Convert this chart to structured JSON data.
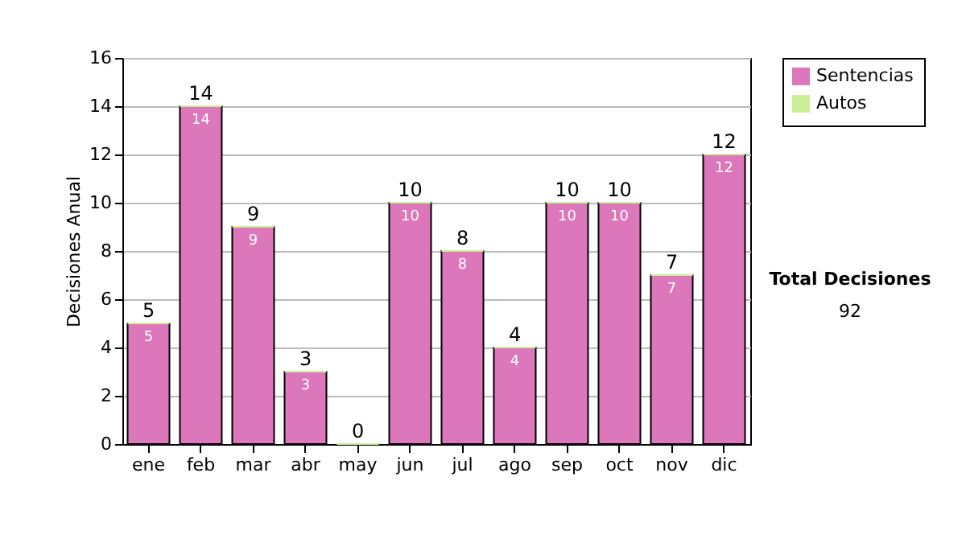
{
  "chart_data": {
    "type": "bar",
    "stacked": true,
    "ylabel": "Decisiones Anual",
    "categories": [
      "ene",
      "feb",
      "mar",
      "abr",
      "may",
      "jun",
      "jul",
      "ago",
      "sep",
      "oct",
      "nov",
      "dic"
    ],
    "series": [
      {
        "name": "Sentencias",
        "color": "#dd77bb",
        "values": [
          5,
          14,
          9,
          3,
          0,
          10,
          8,
          4,
          10,
          10,
          7,
          12
        ],
        "value_labels": [
          "5",
          "14",
          "9",
          "3",
          null,
          "10",
          "8",
          "4",
          "10",
          "10",
          "7",
          "12"
        ]
      },
      {
        "name": "Autos",
        "color": "#ccee99",
        "values": [
          0,
          0,
          0,
          0,
          0,
          0,
          0,
          0,
          0,
          0,
          0,
          0
        ]
      }
    ],
    "totals": [
      "5",
      "14",
      "9",
      "3",
      "0",
      "10",
      "8",
      "4",
      "10",
      "10",
      "7",
      "12"
    ],
    "ylim": [
      0,
      16
    ],
    "yticks": [
      0,
      2,
      4,
      6,
      8,
      10,
      12,
      14,
      16
    ],
    "grid": "y",
    "legend": "right",
    "annotations": [
      "Total Decisiones",
      "92"
    ]
  }
}
